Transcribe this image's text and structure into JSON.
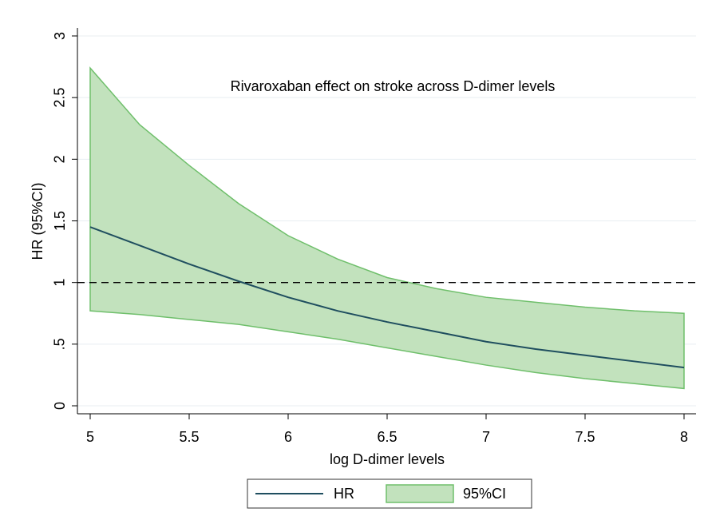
{
  "chart_data": {
    "type": "line-band",
    "annotation": "Rivaroxaban effect on stroke across D-dimer levels",
    "x_label": "log D-dimer levels",
    "y_label": "HR (95%CI)",
    "x": [
      5,
      5.25,
      5.5,
      5.75,
      6,
      6.25,
      6.5,
      6.75,
      7,
      7.25,
      7.5,
      7.75,
      8
    ],
    "series": [
      {
        "name": "HR",
        "color": "#1f4e5f",
        "values": [
          1.45,
          1.3,
          1.15,
          1.01,
          0.88,
          0.77,
          0.68,
          0.6,
          0.52,
          0.46,
          0.41,
          0.36,
          0.31
        ]
      },
      {
        "name": "95%CI",
        "color": "#c2e2bd",
        "edge": "#6fbf6b",
        "upper": [
          2.74,
          2.28,
          1.95,
          1.64,
          1.38,
          1.19,
          1.04,
          0.95,
          0.88,
          0.84,
          0.8,
          0.77,
          0.75
        ],
        "lower": [
          0.77,
          0.74,
          0.7,
          0.66,
          0.6,
          0.54,
          0.47,
          0.4,
          0.33,
          0.27,
          0.22,
          0.18,
          0.14
        ]
      }
    ],
    "reference_line": 1,
    "xlim": [
      5,
      8
    ],
    "xticks": [
      5,
      5.5,
      6,
      6.5,
      7,
      7.5,
      8
    ],
    "ylim": [
      0,
      3
    ],
    "yticks": [
      0,
      {
        "value": 0.5,
        "label": ".5"
      },
      1,
      1.5,
      2,
      2.5,
      3
    ],
    "grid": true,
    "legend": "bottom"
  }
}
